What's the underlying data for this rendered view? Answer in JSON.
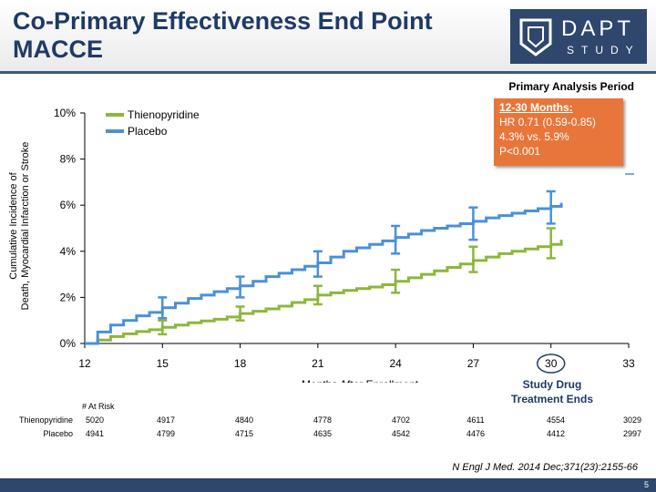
{
  "header": {
    "title": "Co-Primary Effectiveness End Point\nMACCE",
    "logo_text": "DAPT",
    "logo_sub": "STUDY"
  },
  "period_label": "Primary Analysis Period",
  "annotation": {
    "heading": "12-30 Months:",
    "lines": [
      "HR 0.71 (0.59-0.85)",
      "4.3% vs. 5.9%",
      "P<0.001"
    ]
  },
  "study_end_label": "Study Drug\nTreatment Ends",
  "risk_table": {
    "header": "# At Risk",
    "rows": [
      {
        "name": "Thienopyridine",
        "values": [
          "5020",
          "4917",
          "4840",
          "4778",
          "4702",
          "4611",
          "4554",
          "3029"
        ]
      },
      {
        "name": "Placebo",
        "values": [
          "4941",
          "4799",
          "4715",
          "4635",
          "4542",
          "4476",
          "4412",
          "2997"
        ]
      }
    ]
  },
  "citation": "N Engl J Med. 2014 Dec;371(23):2155-66",
  "page_number": "5",
  "colors": {
    "thienopyridine": "#8db63c",
    "placebo": "#4a90d9",
    "title": "#1f3a66",
    "annotation_box": "#e8763a",
    "logo_bg": "#2f466d"
  },
  "chart_data": {
    "type": "line",
    "xlabel": "Months After Enrollment",
    "ylabel": "Cumulative Incidence of\nDeath, Myocardial Infarction or Stroke",
    "xlim": [
      12,
      33
    ],
    "ylim": [
      0,
      10
    ],
    "x_ticks": [
      12,
      15,
      18,
      21,
      24,
      27,
      30,
      33
    ],
    "x_tick_labels": [
      "12",
      "15",
      "18",
      "21",
      "24",
      "27",
      "30",
      "33"
    ],
    "y_ticks": [
      0,
      2,
      4,
      6,
      8,
      10
    ],
    "y_tick_labels": [
      "0%",
      "2%",
      "4%",
      "6%",
      "8%",
      "10%"
    ],
    "highlight_x": 30,
    "legend_position": "top-left",
    "series": [
      {
        "name": "Thienopyridine",
        "color": "#8db63c",
        "x": [
          12,
          12.5,
          13,
          13.5,
          14,
          14.5,
          15,
          15.5,
          16,
          16.5,
          17,
          17.5,
          18,
          18.5,
          19,
          19.5,
          20,
          20.5,
          21,
          21.5,
          22,
          22.5,
          23,
          23.5,
          24,
          24.5,
          25,
          25.5,
          26,
          26.5,
          27,
          27.5,
          28,
          28.5,
          29,
          29.5,
          30,
          30.4
        ],
        "y": [
          0,
          0.15,
          0.3,
          0.42,
          0.52,
          0.6,
          0.7,
          0.8,
          0.9,
          0.98,
          1.05,
          1.15,
          1.3,
          1.4,
          1.5,
          1.62,
          1.78,
          1.9,
          2.1,
          2.2,
          2.3,
          2.38,
          2.45,
          2.55,
          2.7,
          2.85,
          3.0,
          3.15,
          3.3,
          3.45,
          3.6,
          3.75,
          3.9,
          4.0,
          4.1,
          4.2,
          4.3,
          4.5
        ],
        "error_bars": [
          {
            "x": 15,
            "low": 0.4,
            "high": 1.0
          },
          {
            "x": 18,
            "low": 1.0,
            "high": 1.6
          },
          {
            "x": 21,
            "low": 1.7,
            "high": 2.5
          },
          {
            "x": 24,
            "low": 2.2,
            "high": 3.2
          },
          {
            "x": 27,
            "low": 3.1,
            "high": 4.2
          },
          {
            "x": 30,
            "low": 3.7,
            "high": 5.0
          }
        ]
      },
      {
        "name": "Placebo",
        "color": "#4a90d9",
        "x": [
          12,
          12.5,
          13,
          13.5,
          14,
          14.5,
          15,
          15.5,
          16,
          16.5,
          17,
          17.5,
          18,
          18.5,
          19,
          19.5,
          20,
          20.5,
          21,
          21.5,
          22,
          22.5,
          23,
          23.5,
          24,
          24.5,
          25,
          25.5,
          26,
          26.5,
          27,
          27.5,
          28,
          28.5,
          29,
          29.5,
          30,
          30.4
        ],
        "y": [
          0,
          0.5,
          0.8,
          1.0,
          1.2,
          1.35,
          1.55,
          1.75,
          1.95,
          2.1,
          2.25,
          2.38,
          2.5,
          2.7,
          2.9,
          3.05,
          3.2,
          3.35,
          3.5,
          3.75,
          4.0,
          4.15,
          4.3,
          4.45,
          4.6,
          4.75,
          4.9,
          5.0,
          5.1,
          5.2,
          5.3,
          5.45,
          5.55,
          5.65,
          5.75,
          5.85,
          5.95,
          6.1
        ],
        "error_bars": [
          {
            "x": 15,
            "low": 1.1,
            "high": 2.0
          },
          {
            "x": 18,
            "low": 2.0,
            "high": 2.9
          },
          {
            "x": 21,
            "low": 2.9,
            "high": 4.0
          },
          {
            "x": 24,
            "low": 3.9,
            "high": 5.1
          },
          {
            "x": 27,
            "low": 4.5,
            "high": 5.9
          },
          {
            "x": 30,
            "low": 5.2,
            "high": 6.6
          }
        ]
      }
    ]
  }
}
